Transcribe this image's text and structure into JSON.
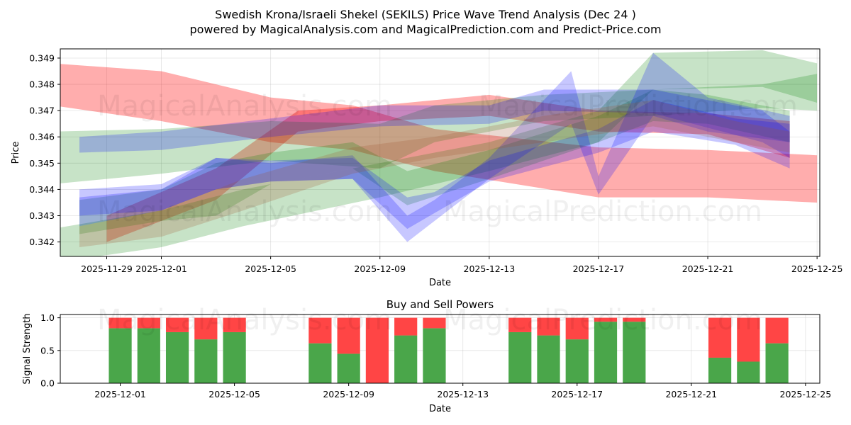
{
  "title_line1": "Swedish Krona/Israeli Shekel (SEKILS) Price Wave Trend Analysis (Dec 24 )",
  "title_line2": "powered by MagicalAnalysis.com and MagicalPrediction.com and Predict-Price.com",
  "watermarks": [
    "MagicalAnalysis.com",
    "MagicalPrediction.com"
  ],
  "colors": {
    "red": "#ff0000",
    "green": "#008000",
    "blue": "#0000ff",
    "orange": "#a0522d",
    "buy": "#4aa64a",
    "sell": "#ff4545"
  },
  "chart_data": [
    {
      "type": "area",
      "title": "Swedish Krona/Israeli Shekel (SEKILS) Price Wave Trend Analysis (Dec 24 )",
      "xlabel": "Date",
      "ylabel": "Price",
      "ylim": [
        0.34145,
        0.34935
      ],
      "xlim": [
        "2025-11-27",
        "2025-12-25"
      ],
      "xticks": [
        "2025-11-29",
        "2025-12-01",
        "2025-12-05",
        "2025-12-09",
        "2025-12-13",
        "2025-12-17",
        "2025-12-21",
        "2025-12-25"
      ],
      "yticks": [
        0.342,
        0.343,
        0.344,
        0.345,
        0.346,
        0.347,
        0.348,
        0.349
      ],
      "grid": true,
      "series": [
        {
          "name": "red wave (falling)",
          "color": "red",
          "points": [
            [
              "2025-11-27",
              0.3488,
              0.3472
            ],
            [
              "2025-12-01",
              0.3485,
              0.3466
            ],
            [
              "2025-12-05",
              0.3475,
              0.3458
            ],
            [
              "2025-12-08",
              0.3472,
              0.3455
            ],
            [
              "2025-12-11",
              0.3463,
              0.3447
            ],
            [
              "2025-12-17",
              0.3456,
              0.3437
            ],
            [
              "2025-12-21",
              0.3455,
              0.3437
            ],
            [
              "2025-12-25",
              0.3453,
              0.3435
            ]
          ]
        },
        {
          "name": "red wave (rising)",
          "color": "red",
          "points": [
            [
              "2025-11-29",
              0.343,
              0.342
            ],
            [
              "2025-12-03",
              0.3448,
              0.3436
            ],
            [
              "2025-12-06",
              0.347,
              0.3462
            ],
            [
              "2025-12-09",
              0.3472,
              0.3466
            ],
            [
              "2025-12-13",
              0.3476,
              0.3468
            ],
            [
              "2025-12-17",
              0.347,
              0.3462
            ],
            [
              "2025-12-21",
              0.3469,
              0.3461
            ],
            [
              "2025-12-24",
              0.3466,
              0.3452
            ]
          ]
        },
        {
          "name": "green wave (wide)",
          "color": "green",
          "points": [
            [
              "2025-11-27",
              0.3425,
              0.3412
            ],
            [
              "2025-12-01",
              0.3432,
              0.3418
            ],
            [
              "2025-12-04",
              0.344,
              0.3426
            ],
            [
              "2025-12-09",
              0.345,
              0.3437
            ],
            [
              "2025-12-13",
              0.3458,
              0.3447
            ],
            [
              "2025-12-17",
              0.347,
              0.3458
            ],
            [
              "2025-12-19",
              0.3492,
              0.3478
            ],
            [
              "2025-12-23",
              0.3493,
              0.3479
            ],
            [
              "2025-12-25",
              0.3488,
              0.3473
            ]
          ]
        },
        {
          "name": "green wave (upper)",
          "color": "green",
          "points": [
            [
              "2025-11-27",
              0.3462,
              0.3442
            ],
            [
              "2025-12-01",
              0.3463,
              0.3446
            ],
            [
              "2025-12-05",
              0.3466,
              0.3451
            ],
            [
              "2025-12-09",
              0.3465,
              0.3448
            ],
            [
              "2025-12-11",
              0.3472,
              0.3458
            ],
            [
              "2025-12-15",
              0.3476,
              0.3466
            ],
            [
              "2025-12-19",
              0.3478,
              0.3468
            ],
            [
              "2025-12-23",
              0.348,
              0.3471
            ],
            [
              "2025-12-25",
              0.3484,
              0.347
            ]
          ]
        },
        {
          "name": "green wave (dip)",
          "color": "green",
          "points": [
            [
              "2025-11-28",
              0.3436,
              0.3423
            ],
            [
              "2025-12-01",
              0.344,
              0.3428
            ],
            [
              "2025-12-03",
              0.345,
              0.343
            ],
            [
              "2025-12-05",
              0.3454,
              0.3442
            ],
            [
              "2025-12-08",
              0.3458,
              0.3448
            ],
            [
              "2025-12-10",
              0.3447,
              0.3434
            ],
            [
              "2025-12-13",
              0.3455,
              0.3444
            ],
            [
              "2025-12-17",
              0.3468,
              0.3458
            ],
            [
              "2025-12-19",
              0.3478,
              0.3466
            ],
            [
              "2025-12-21",
              0.3476,
              0.3465
            ],
            [
              "2025-12-24",
              0.347,
              0.3458
            ]
          ]
        },
        {
          "name": "blue wave (upper)",
          "color": "blue",
          "points": [
            [
              "2025-11-28",
              0.346,
              0.3454
            ],
            [
              "2025-12-01",
              0.3462,
              0.3455
            ],
            [
              "2025-12-05",
              0.3467,
              0.346
            ],
            [
              "2025-12-09",
              0.3472,
              0.3464
            ],
            [
              "2025-12-13",
              0.3472,
              0.3465
            ],
            [
              "2025-12-15",
              0.3478,
              0.347
            ],
            [
              "2025-12-19",
              0.3478,
              0.3469
            ],
            [
              "2025-12-23",
              0.347,
              0.3458
            ],
            [
              "2025-12-24",
              0.3462,
              0.3452
            ]
          ]
        },
        {
          "name": "blue wave (volatile)",
          "color": "blue",
          "points": [
            [
              "2025-11-28",
              0.3437,
              0.343
            ],
            [
              "2025-12-01",
              0.344,
              0.3432
            ],
            [
              "2025-12-03",
              0.3452,
              0.344
            ],
            [
              "2025-12-05",
              0.3451,
              0.3443
            ],
            [
              "2025-12-08",
              0.3452,
              0.3444
            ],
            [
              "2025-12-10",
              0.3437,
              0.3425
            ],
            [
              "2025-12-11",
              0.3439,
              0.3431
            ],
            [
              "2025-12-13",
              0.3451,
              0.3443
            ],
            [
              "2025-12-17",
              0.3463,
              0.3454
            ],
            [
              "2025-12-19",
              0.3474,
              0.3462
            ],
            [
              "2025-12-22",
              0.3467,
              0.3457
            ],
            [
              "2025-12-24",
              0.3465,
              0.3448
            ]
          ]
        },
        {
          "name": "blue wave (spiky)",
          "color": "blue",
          "points": [
            [
              "2025-11-28",
              0.344,
              0.3426
            ],
            [
              "2025-12-01",
              0.3442,
              0.3432
            ],
            [
              "2025-12-03",
              0.3452,
              0.344
            ],
            [
              "2025-12-05",
              0.345,
              0.3443
            ],
            [
              "2025-12-08",
              0.3453,
              0.3444
            ],
            [
              "2025-12-10",
              0.343,
              0.342
            ],
            [
              "2025-12-11",
              0.3436,
              0.3428
            ],
            [
              "2025-12-13",
              0.3452,
              0.3444
            ],
            [
              "2025-12-16",
              0.3485,
              0.3465
            ],
            [
              "2025-12-17",
              0.3445,
              0.3438
            ],
            [
              "2025-12-19",
              0.3492,
              0.3468
            ],
            [
              "2025-12-21",
              0.3475,
              0.3462
            ],
            [
              "2025-12-24",
              0.3468,
              0.3458
            ]
          ]
        },
        {
          "name": "brown wave",
          "color": "orange",
          "points": [
            [
              "2025-11-28",
              0.3426,
              0.3418
            ],
            [
              "2025-12-01",
              0.3432,
              0.3422
            ],
            [
              "2025-12-04",
              0.3444,
              0.3432
            ],
            [
              "2025-12-08",
              0.3456,
              0.3446
            ],
            [
              "2025-12-11",
              0.346,
              0.3452
            ],
            [
              "2025-12-15",
              0.3468,
              0.3458
            ],
            [
              "2025-12-19",
              0.3474,
              0.3464
            ],
            [
              "2025-12-22",
              0.3466,
              0.3458
            ],
            [
              "2025-12-24",
              0.3462,
              0.3454
            ]
          ]
        }
      ]
    },
    {
      "type": "bar",
      "title": "Buy and Sell Powers",
      "xlabel": "Date",
      "ylabel": "Signal Strength",
      "ylim": [
        0,
        1.05
      ],
      "xlim": [
        "2025-11-29",
        "2025-12-25"
      ],
      "xticks": [
        "2025-12-01",
        "2025-12-05",
        "2025-12-09",
        "2025-12-13",
        "2025-12-17",
        "2025-12-21",
        "2025-12-25"
      ],
      "yticks": [
        "0.0",
        "0.5",
        "1.0"
      ],
      "grid": true,
      "categories": [
        "2025-12-01",
        "2025-12-02",
        "2025-12-03",
        "2025-12-04",
        "2025-12-05",
        "2025-12-08",
        "2025-12-09",
        "2025-12-10",
        "2025-12-11",
        "2025-12-12",
        "2025-12-15",
        "2025-12-16",
        "2025-12-17",
        "2025-12-18",
        "2025-12-19",
        "2025-12-22",
        "2025-12-23",
        "2025-12-24"
      ],
      "series": [
        {
          "name": "Buy",
          "color": "buy",
          "values": [
            0.84,
            0.84,
            0.78,
            0.67,
            0.78,
            0.61,
            0.45,
            0.0,
            0.73,
            0.84,
            0.78,
            0.73,
            0.67,
            0.94,
            0.94,
            0.39,
            0.33,
            0.61
          ]
        },
        {
          "name": "Sell",
          "color": "sell",
          "values": [
            0.16,
            0.16,
            0.22,
            0.33,
            0.22,
            0.39,
            0.55,
            1.0,
            0.27,
            0.16,
            0.22,
            0.27,
            0.33,
            0.06,
            0.06,
            0.61,
            0.67,
            0.39
          ]
        }
      ]
    }
  ]
}
